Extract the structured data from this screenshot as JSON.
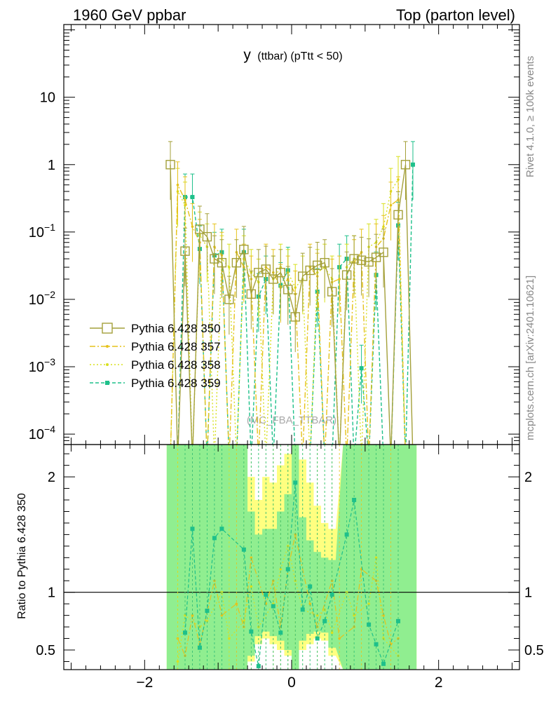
{
  "header": {
    "left": "1960 GeV ppbar",
    "right": "Top (parton level)"
  },
  "side_labels": {
    "rivet": "Rivet 4.1.0, ≥ 100k events",
    "mcplots": "mcplots.cern.ch [arXiv:2401.10621]"
  },
  "colors": {
    "s350": "#a4a03a",
    "s357": "#e6c21a",
    "s358": "#d8e01e",
    "s359": "#1ec08a",
    "band_green": "#90ee90",
    "band_yellow": "#ffff80"
  },
  "chart_data": [
    {
      "type": "line",
      "panel": "main",
      "title": "y",
      "title_sub": "(ttbar)  (pTtt < 50)",
      "watermark": "(MC_FBA_TTBAR)",
      "yscale": "log",
      "xlim": [
        -3.1,
        3.1
      ],
      "ylim": [
        7e-05,
        120
      ],
      "xticks": [
        -2,
        0,
        2
      ],
      "ytick_labels": [
        {
          "value": 10,
          "base": "10",
          "exp": ""
        },
        {
          "value": 1,
          "base": "1",
          "exp": ""
        },
        {
          "value": 0.1,
          "base": "10",
          "exp": "−1"
        },
        {
          "value": 0.01,
          "base": "10",
          "exp": "−2"
        },
        {
          "value": 0.001,
          "base": "10",
          "exp": "−3"
        },
        {
          "value": 0.0001,
          "base": "10",
          "exp": "−4"
        }
      ],
      "x": [
        -1.65,
        -1.55,
        -1.45,
        -1.35,
        -1.25,
        -1.15,
        -1.05,
        -0.95,
        -0.85,
        -0.75,
        -0.65,
        -0.55,
        -0.45,
        -0.35,
        -0.25,
        -0.15,
        -0.05,
        0.05,
        0.15,
        0.25,
        0.35,
        0.45,
        0.55,
        0.65,
        0.75,
        0.85,
        0.95,
        1.05,
        1.15,
        1.25,
        1.35,
        1.45,
        1.55,
        1.65
      ],
      "series": [
        {
          "name": "Pythia 6.428 350",
          "color_key": "s350",
          "style": "solid",
          "marker": "open-square",
          "values": [
            1.0,
            0.0,
            0.052,
            0.0,
            0.11,
            0.085,
            0.04,
            0.035,
            0.01,
            0.035,
            0.055,
            0.012,
            0.025,
            0.028,
            0.02,
            0.025,
            0.014,
            0.0055,
            0.022,
            0.027,
            0.032,
            0.035,
            0.013,
            0.0,
            0.023,
            0.04,
            0.038,
            0.036,
            0.042,
            0.05,
            0.0,
            0.18,
            1.0,
            0.0
          ]
        },
        {
          "name": "Pythia 6.428 357",
          "color_key": "s357",
          "style": "dashdot",
          "marker": "small-star",
          "values": [
            0.0,
            0.5,
            0.3,
            0.12,
            0.07,
            0.0,
            0.06,
            0.045,
            0.0,
            0.05,
            0.03,
            0.02,
            0.0,
            0.03,
            0.025,
            0.015,
            0.02,
            0.012,
            0.0,
            0.03,
            0.022,
            0.0,
            0.018,
            0.02,
            0.0,
            0.035,
            0.05,
            0.0,
            0.06,
            0.08,
            0.25,
            0.3,
            0.0,
            0.0
          ]
        },
        {
          "name": "Pythia 6.428 358",
          "color_key": "s358",
          "style": "dotted",
          "marker": "small-dot",
          "values": [
            0.0,
            0.4,
            0.25,
            0.0,
            0.09,
            0.06,
            0.0,
            0.04,
            0.03,
            0.0,
            0.04,
            0.025,
            0.018,
            0.0,
            0.02,
            0.03,
            0.025,
            0.015,
            0.02,
            0.0,
            0.025,
            0.03,
            0.02,
            0.0,
            0.03,
            0.04,
            0.0,
            0.06,
            0.07,
            0.12,
            0.4,
            0.6,
            0.0,
            0.0
          ]
        },
        {
          "name": "Pythia 6.428 359",
          "color_key": "s359",
          "style": "dashed",
          "marker": "filled-square",
          "values": [
            0.0,
            0.0,
            0.33,
            0.33,
            0.056,
            0.0,
            0.045,
            0.05,
            0.0,
            0.0,
            0.05,
            0.0,
            0.011,
            0.02,
            0.0,
            0.016,
            0.027,
            0.0,
            0.0,
            0.0,
            0.013,
            0.0,
            0.0,
            0.03,
            0.04,
            0.0,
            0.00095,
            0.0,
            0.023,
            0.0,
            0.0,
            0.125,
            0.0,
            1.0
          ]
        }
      ]
    },
    {
      "type": "line",
      "panel": "ratio",
      "ylabel": "Ratio to Pythia 6.428 350",
      "reference": "Pythia 6.428 350",
      "xlim": [
        -3.1,
        3.1
      ],
      "ylim": [
        0.33,
        2.28
      ],
      "xticks": [
        -2,
        0,
        2
      ],
      "xtick_labels": [
        "−2",
        "0",
        "2"
      ],
      "yticks": [
        0.5,
        1,
        2
      ],
      "ytick_labels": [
        "0.5",
        "1",
        "2"
      ],
      "reference_line": 1,
      "band_x": [
        -1.65,
        -1.45,
        -1.35,
        -1.25,
        -1.15,
        -1.05,
        -0.95,
        -0.85,
        -0.75,
        -0.65,
        -0.55,
        -0.45,
        -0.35,
        -0.25,
        -0.15,
        -0.05,
        0.05,
        0.15,
        0.25,
        0.35,
        0.45,
        0.55,
        0.75,
        0.85,
        0.95,
        1.05,
        1.15,
        1.25,
        1.45,
        1.55,
        1.65
      ],
      "band_yellow_lo": [
        0.33,
        0.33,
        0.33,
        0.33,
        0.33,
        0.33,
        0.33,
        0.33,
        0.33,
        0.33,
        0.4,
        0.55,
        0.6,
        0.55,
        0.5,
        0.45,
        0.33,
        0.5,
        0.55,
        0.6,
        0.58,
        0.45,
        0.33,
        0.33,
        0.33,
        0.33,
        0.33,
        0.33,
        0.33,
        0.33,
        0.33
      ],
      "band_yellow_hi": [
        2.28,
        2.28,
        2.28,
        2.28,
        2.28,
        2.28,
        2.28,
        2.28,
        2.28,
        2.28,
        2.0,
        1.8,
        2.0,
        1.95,
        2.1,
        2.2,
        2.28,
        2.15,
        1.95,
        1.75,
        1.6,
        1.55,
        2.28,
        2.28,
        2.28,
        2.28,
        2.28,
        2.28,
        2.28,
        2.28,
        2.28
      ],
      "band_green_lo": [
        0.33,
        0.33,
        0.33,
        0.33,
        0.33,
        0.33,
        0.33,
        0.33,
        0.33,
        0.33,
        0.45,
        0.62,
        0.66,
        0.62,
        0.58,
        0.5,
        0.33,
        0.58,
        0.64,
        0.66,
        0.65,
        0.52,
        0.33,
        0.33,
        0.33,
        0.33,
        0.33,
        0.33,
        0.33,
        0.33,
        0.33
      ],
      "band_green_hi": [
        2.28,
        2.28,
        2.28,
        2.28,
        2.28,
        2.28,
        2.28,
        2.28,
        2.28,
        2.28,
        1.7,
        1.5,
        1.55,
        1.55,
        1.7,
        1.85,
        2.28,
        1.65,
        1.45,
        1.35,
        1.3,
        1.28,
        2.28,
        2.28,
        2.28,
        2.28,
        2.28,
        2.28,
        2.28,
        2.28,
        2.28
      ],
      "series": [
        {
          "name": "Pythia 6.428 357",
          "color_key": "s357",
          "style": "dashdot",
          "marker": "small-star",
          "points": [
            [
              -1.55,
              0.6
            ],
            [
              -1.45,
              0.45
            ],
            [
              -1.35,
              0.8
            ],
            [
              -1.25,
              0.55
            ],
            [
              -1.05,
              1.1
            ],
            [
              -0.95,
              0.8
            ],
            [
              -0.75,
              0.9
            ],
            [
              -0.65,
              0.7
            ],
            [
              -0.55,
              1.3
            ],
            [
              -0.35,
              0.9
            ],
            [
              -0.25,
              1.1
            ],
            [
              -0.15,
              0.7
            ],
            [
              -0.05,
              1.2
            ],
            [
              0.05,
              1.5
            ],
            [
              0.25,
              0.9
            ],
            [
              0.35,
              0.7
            ],
            [
              0.55,
              1.1
            ],
            [
              0.65,
              0.6
            ],
            [
              0.85,
              0.7
            ],
            [
              0.95,
              1.2
            ],
            [
              1.15,
              1.1
            ],
            [
              1.25,
              0.8
            ],
            [
              1.35,
              0.55
            ],
            [
              1.45,
              0.6
            ]
          ]
        },
        {
          "name": "Pythia 6.428 358",
          "color_key": "s358",
          "style": "dotted",
          "marker": "small-dot",
          "points": [
            [
              -1.55,
              0.4
            ],
            [
              -1.45,
              0.8
            ],
            [
              -1.25,
              0.7
            ],
            [
              -1.15,
              0.75
            ],
            [
              -0.95,
              1.0
            ],
            [
              -0.85,
              0.6
            ],
            [
              -0.65,
              0.75
            ],
            [
              -0.55,
              1.05
            ],
            [
              -0.45,
              0.7
            ],
            [
              -0.25,
              0.9
            ],
            [
              -0.15,
              1.2
            ],
            [
              -0.05,
              1.4
            ],
            [
              0.05,
              1.1
            ],
            [
              0.15,
              0.85
            ],
            [
              0.35,
              0.8
            ],
            [
              0.45,
              0.85
            ],
            [
              0.55,
              0.65
            ],
            [
              0.75,
              1.0
            ],
            [
              0.85,
              0.8
            ],
            [
              1.05,
              0.9
            ],
            [
              1.15,
              1.3
            ],
            [
              1.25,
              0.6
            ],
            [
              1.45,
              0.45
            ]
          ]
        },
        {
          "name": "Pythia 6.428 359",
          "color_key": "s359",
          "style": "dashed",
          "marker": "filled-square",
          "points": [
            [
              -1.45,
              0.65
            ],
            [
              -1.35,
              1.55
            ],
            [
              -1.25,
              0.52
            ],
            [
              -1.15,
              0.84
            ],
            [
              -1.05,
              1.47
            ],
            [
              -0.95,
              1.55
            ],
            [
              -0.65,
              1.37
            ],
            [
              -0.55,
              0.66
            ],
            [
              -0.45,
              0.36
            ],
            [
              -0.35,
              0.98
            ],
            [
              -0.25,
              0.88
            ],
            [
              -0.15,
              0.65
            ],
            [
              -0.05,
              1.2
            ],
            [
              0.05,
              1.95
            ],
            [
              0.15,
              0.85
            ],
            [
              0.25,
              1.05
            ],
            [
              0.35,
              0.6
            ],
            [
              0.45,
              0.75
            ],
            [
              0.55,
              0.98
            ],
            [
              0.75,
              1.5
            ],
            [
              0.85,
              1.8
            ],
            [
              1.05,
              0.72
            ],
            [
              1.15,
              0.55
            ],
            [
              1.25,
              0.38
            ],
            [
              1.45,
              0.75
            ]
          ]
        }
      ]
    }
  ]
}
